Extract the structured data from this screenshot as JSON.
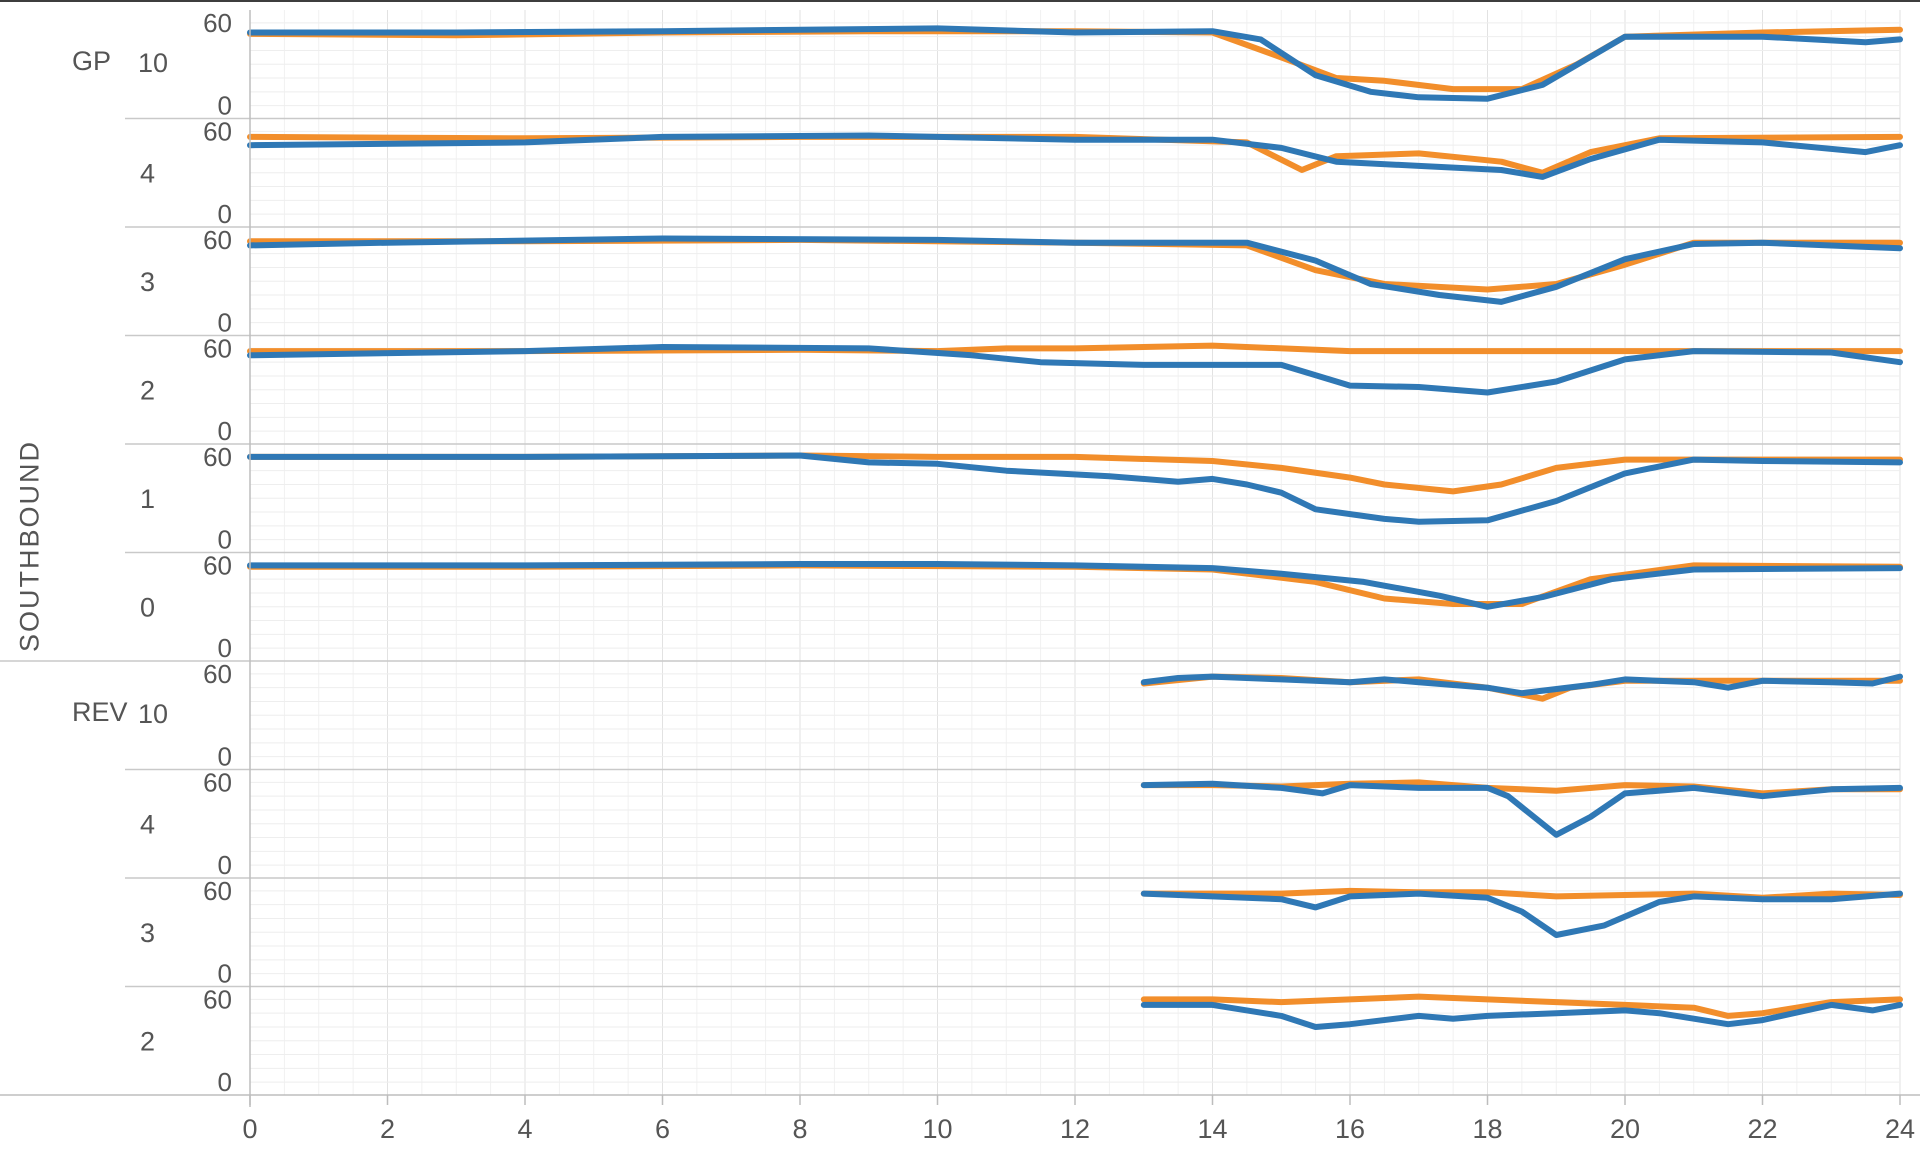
{
  "chart_data": {
    "type": "line",
    "direction_label": "SOUTHBOUND",
    "x_ticks": [
      0,
      2,
      4,
      6,
      8,
      10,
      12,
      14,
      16,
      18,
      20,
      22,
      24
    ],
    "xlim": [
      0,
      24
    ],
    "y_ticks": [
      0,
      60
    ],
    "colors": {
      "series_a": "#f28e2b",
      "series_b": "#2f78b5"
    },
    "panels": [
      {
        "group": "GP",
        "lane": "10",
        "ylim": [
          -5,
          65
        ],
        "orange": [
          [
            0,
            52
          ],
          [
            3,
            51
          ],
          [
            6,
            53
          ],
          [
            9,
            54
          ],
          [
            12,
            54
          ],
          [
            14,
            53
          ],
          [
            15,
            35
          ],
          [
            15.8,
            20
          ],
          [
            16.5,
            18
          ],
          [
            17.5,
            12
          ],
          [
            18.5,
            12
          ],
          [
            19.3,
            30
          ],
          [
            20,
            50
          ],
          [
            22,
            53
          ],
          [
            24,
            55
          ]
        ],
        "blue": [
          [
            0,
            53
          ],
          [
            3,
            53
          ],
          [
            6,
            54
          ],
          [
            10,
            56
          ],
          [
            12,
            53
          ],
          [
            14,
            54
          ],
          [
            14.7,
            48
          ],
          [
            15.5,
            22
          ],
          [
            16.3,
            10
          ],
          [
            17,
            6
          ],
          [
            18,
            5
          ],
          [
            18.8,
            15
          ],
          [
            20,
            50
          ],
          [
            22,
            50
          ],
          [
            23.5,
            46
          ],
          [
            24,
            48
          ]
        ]
      },
      {
        "group": "",
        "lane": "4",
        "ylim": [
          -5,
          65
        ],
        "orange": [
          [
            0,
            56
          ],
          [
            4,
            55
          ],
          [
            8,
            56
          ],
          [
            12,
            56
          ],
          [
            14.5,
            52
          ],
          [
            15.3,
            32
          ],
          [
            15.8,
            42
          ],
          [
            17,
            44
          ],
          [
            18.2,
            38
          ],
          [
            18.8,
            30
          ],
          [
            19.5,
            45
          ],
          [
            20.5,
            55
          ],
          [
            24,
            56
          ]
        ],
        "blue": [
          [
            0,
            50
          ],
          [
            4,
            52
          ],
          [
            6,
            56
          ],
          [
            9,
            57
          ],
          [
            12,
            54
          ],
          [
            14,
            54
          ],
          [
            15,
            48
          ],
          [
            15.8,
            38
          ],
          [
            17,
            35
          ],
          [
            18.2,
            32
          ],
          [
            18.8,
            27
          ],
          [
            19.5,
            40
          ],
          [
            20.5,
            54
          ],
          [
            22,
            52
          ],
          [
            23.5,
            45
          ],
          [
            24,
            50
          ]
        ]
      },
      {
        "group": "",
        "lane": "3",
        "ylim": [
          -5,
          65
        ],
        "orange": [
          [
            0,
            59
          ],
          [
            4,
            59
          ],
          [
            8,
            60
          ],
          [
            12,
            58
          ],
          [
            14.5,
            56
          ],
          [
            15.5,
            38
          ],
          [
            16.5,
            28
          ],
          [
            18,
            24
          ],
          [
            19,
            28
          ],
          [
            20,
            42
          ],
          [
            21,
            58
          ],
          [
            24,
            58
          ]
        ],
        "blue": [
          [
            0,
            56
          ],
          [
            2,
            58
          ],
          [
            6,
            61
          ],
          [
            10,
            60
          ],
          [
            12,
            58
          ],
          [
            14.5,
            58
          ],
          [
            15.5,
            45
          ],
          [
            16.3,
            28
          ],
          [
            17.3,
            20
          ],
          [
            18.2,
            15
          ],
          [
            19,
            26
          ],
          [
            20,
            46
          ],
          [
            21,
            57
          ],
          [
            22,
            58
          ],
          [
            24,
            54
          ]
        ]
      },
      {
        "group": "",
        "lane": "2",
        "ylim": [
          -5,
          65
        ],
        "orange": [
          [
            0,
            58
          ],
          [
            4,
            58
          ],
          [
            8,
            59
          ],
          [
            10,
            58
          ],
          [
            11,
            60
          ],
          [
            12,
            60
          ],
          [
            14,
            62
          ],
          [
            16,
            58
          ],
          [
            18,
            58
          ],
          [
            20,
            58
          ],
          [
            24,
            58
          ]
        ],
        "blue": [
          [
            0,
            55
          ],
          [
            4,
            58
          ],
          [
            6,
            61
          ],
          [
            9,
            60
          ],
          [
            10.5,
            55
          ],
          [
            11.5,
            50
          ],
          [
            13,
            48
          ],
          [
            15,
            48
          ],
          [
            16,
            33
          ],
          [
            17,
            32
          ],
          [
            18,
            28
          ],
          [
            19,
            36
          ],
          [
            20,
            52
          ],
          [
            21,
            58
          ],
          [
            23,
            57
          ],
          [
            24,
            50
          ]
        ]
      },
      {
        "group": "",
        "lane": "1",
        "ylim": [
          -5,
          65
        ],
        "orange": [
          [
            0,
            60
          ],
          [
            4,
            60
          ],
          [
            8,
            61
          ],
          [
            10,
            60
          ],
          [
            12,
            60
          ],
          [
            14,
            57
          ],
          [
            15,
            52
          ],
          [
            16,
            45
          ],
          [
            16.5,
            40
          ],
          [
            17.5,
            35
          ],
          [
            18.2,
            40
          ],
          [
            19,
            52
          ],
          [
            20,
            58
          ],
          [
            24,
            58
          ]
        ],
        "blue": [
          [
            0,
            60
          ],
          [
            4,
            60
          ],
          [
            8,
            61
          ],
          [
            9,
            56
          ],
          [
            10,
            55
          ],
          [
            11,
            50
          ],
          [
            12.5,
            46
          ],
          [
            13.5,
            42
          ],
          [
            14,
            44
          ],
          [
            14.5,
            40
          ],
          [
            15,
            34
          ],
          [
            15.5,
            22
          ],
          [
            16.5,
            15
          ],
          [
            17,
            13
          ],
          [
            18,
            14
          ],
          [
            19,
            28
          ],
          [
            20,
            48
          ],
          [
            21,
            58
          ],
          [
            22,
            57
          ],
          [
            24,
            56
          ]
        ]
      },
      {
        "group": "",
        "lane": "0",
        "ylim": [
          -5,
          65
        ],
        "orange": [
          [
            0,
            59
          ],
          [
            4,
            59
          ],
          [
            8,
            60
          ],
          [
            12,
            59
          ],
          [
            14,
            57
          ],
          [
            15.5,
            48
          ],
          [
            16.5,
            36
          ],
          [
            17.5,
            32
          ],
          [
            18.5,
            32
          ],
          [
            19.5,
            50
          ],
          [
            21,
            60
          ],
          [
            24,
            59
          ]
        ],
        "blue": [
          [
            0,
            60
          ],
          [
            4,
            60
          ],
          [
            8,
            61
          ],
          [
            10,
            61
          ],
          [
            12,
            60
          ],
          [
            14,
            58
          ],
          [
            15,
            54
          ],
          [
            16.2,
            48
          ],
          [
            17.3,
            38
          ],
          [
            18,
            30
          ],
          [
            18.8,
            37
          ],
          [
            19.8,
            50
          ],
          [
            21,
            57
          ],
          [
            24,
            58
          ]
        ]
      },
      {
        "group": "REV",
        "lane": "10",
        "ylim": [
          -5,
          65
        ],
        "orange": [
          [
            13,
            53
          ],
          [
            14,
            58
          ],
          [
            15,
            57
          ],
          [
            16,
            54
          ],
          [
            17,
            56
          ],
          [
            18,
            50
          ],
          [
            18.8,
            42
          ],
          [
            19.2,
            50
          ],
          [
            20,
            55
          ],
          [
            24,
            55
          ]
        ],
        "blue": [
          [
            13,
            54
          ],
          [
            13.5,
            57
          ],
          [
            14,
            58
          ],
          [
            15,
            56
          ],
          [
            16,
            54
          ],
          [
            16.5,
            56
          ],
          [
            17,
            54
          ],
          [
            18,
            50
          ],
          [
            18.5,
            46
          ],
          [
            19.5,
            52
          ],
          [
            20,
            56
          ],
          [
            21,
            54
          ],
          [
            21.5,
            50
          ],
          [
            22,
            55
          ],
          [
            23,
            54
          ],
          [
            23.6,
            53
          ],
          [
            24,
            58
          ]
        ]
      },
      {
        "group": "",
        "lane": "4",
        "ylim": [
          -5,
          65
        ],
        "orange": [
          [
            13,
            58
          ],
          [
            14,
            58
          ],
          [
            15,
            57
          ],
          [
            16,
            59
          ],
          [
            17,
            60
          ],
          [
            18,
            56
          ],
          [
            19,
            54
          ],
          [
            20,
            58
          ],
          [
            21,
            57
          ],
          [
            22,
            52
          ],
          [
            23,
            55
          ],
          [
            24,
            55
          ]
        ],
        "blue": [
          [
            13,
            58
          ],
          [
            14,
            59
          ],
          [
            15,
            56
          ],
          [
            15.6,
            52
          ],
          [
            16,
            58
          ],
          [
            17,
            56
          ],
          [
            18,
            56
          ],
          [
            18.3,
            50
          ],
          [
            19,
            22
          ],
          [
            19.5,
            35
          ],
          [
            20,
            52
          ],
          [
            21,
            56
          ],
          [
            21.5,
            53
          ],
          [
            22,
            50
          ],
          [
            23,
            55
          ],
          [
            24,
            56
          ]
        ]
      },
      {
        "group": "",
        "lane": "3",
        "ylim": [
          -5,
          65
        ],
        "orange": [
          [
            13,
            58
          ],
          [
            14,
            58
          ],
          [
            15,
            58
          ],
          [
            16,
            60
          ],
          [
            17,
            59
          ],
          [
            18,
            59
          ],
          [
            19,
            56
          ],
          [
            20,
            57
          ],
          [
            21,
            58
          ],
          [
            22,
            55
          ],
          [
            23,
            58
          ],
          [
            24,
            57
          ]
        ],
        "blue": [
          [
            13,
            58
          ],
          [
            14,
            56
          ],
          [
            15,
            54
          ],
          [
            15.5,
            48
          ],
          [
            16,
            56
          ],
          [
            17,
            58
          ],
          [
            18,
            55
          ],
          [
            18.5,
            45
          ],
          [
            19,
            28
          ],
          [
            19.7,
            35
          ],
          [
            20.5,
            52
          ],
          [
            21,
            56
          ],
          [
            22,
            54
          ],
          [
            23,
            54
          ],
          [
            24,
            58
          ]
        ]
      },
      {
        "group": "",
        "lane": "2",
        "ylim": [
          -5,
          65
        ],
        "orange": [
          [
            13,
            60
          ],
          [
            14,
            60
          ],
          [
            15,
            58
          ],
          [
            16,
            60
          ],
          [
            17,
            62
          ],
          [
            18,
            60
          ],
          [
            19,
            58
          ],
          [
            20,
            56
          ],
          [
            21,
            54
          ],
          [
            21.5,
            48
          ],
          [
            22,
            50
          ],
          [
            23,
            58
          ],
          [
            24,
            60
          ]
        ],
        "blue": [
          [
            13,
            56
          ],
          [
            14,
            56
          ],
          [
            15,
            48
          ],
          [
            15.5,
            40
          ],
          [
            16,
            42
          ],
          [
            17,
            48
          ],
          [
            17.5,
            46
          ],
          [
            18,
            48
          ],
          [
            19,
            50
          ],
          [
            20,
            52
          ],
          [
            20.5,
            50
          ],
          [
            21,
            46
          ],
          [
            21.5,
            42
          ],
          [
            22,
            45
          ],
          [
            23,
            56
          ],
          [
            23.6,
            52
          ],
          [
            24,
            56
          ]
        ]
      }
    ]
  }
}
